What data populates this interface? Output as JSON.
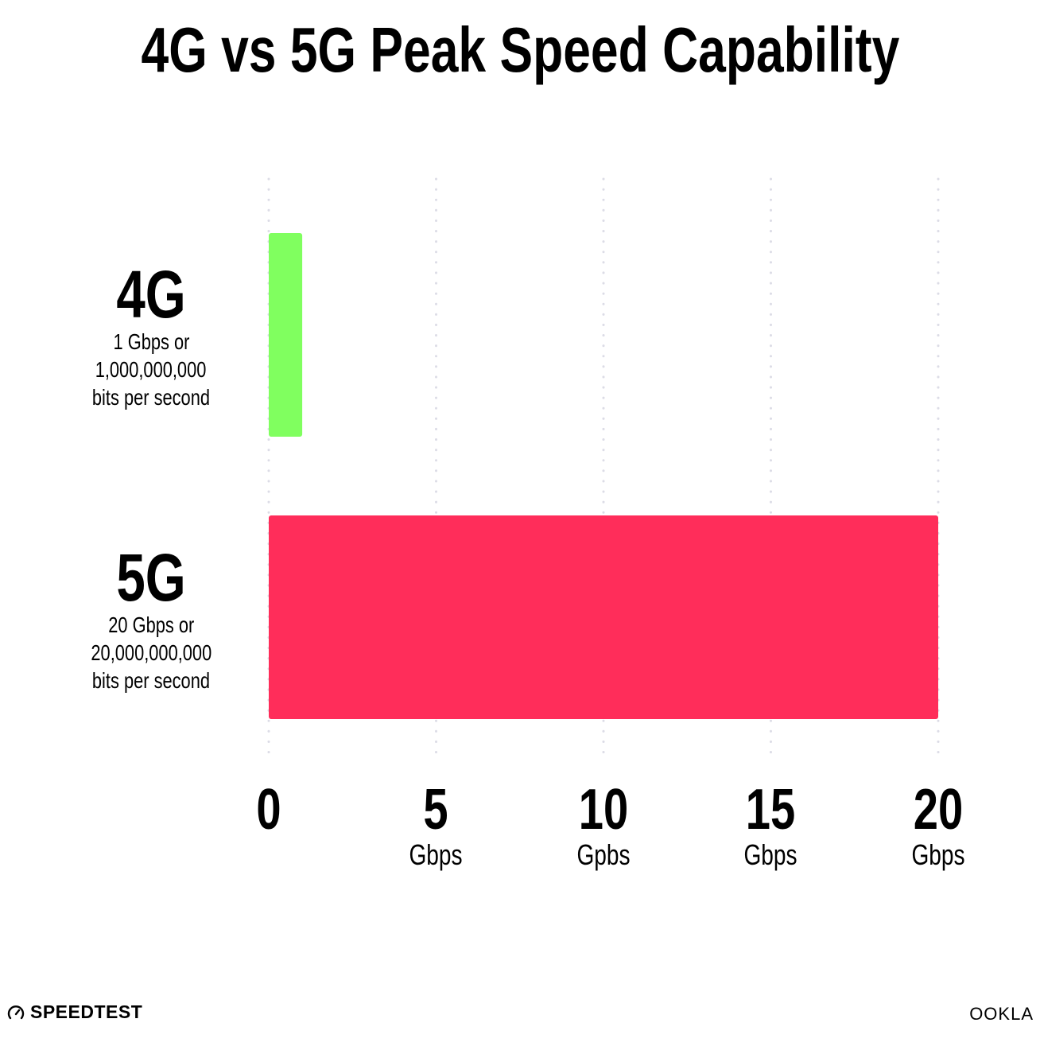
{
  "chart_data": {
    "type": "bar",
    "orientation": "horizontal",
    "title": "4G vs 5G Peak Speed Capability",
    "categories": [
      "4G",
      "5G"
    ],
    "category_descriptions": [
      [
        "1 Gbps or",
        "1,000,000,000",
        "bits per second"
      ],
      [
        "20 Gbps or",
        "20,000,000,000",
        "bits per second"
      ]
    ],
    "values": [
      1,
      20
    ],
    "colors": [
      "#80ff5f",
      "#ff2d5a"
    ],
    "xlim": [
      0,
      20
    ],
    "xticks": [
      {
        "value": 0,
        "label": "0",
        "unit": ""
      },
      {
        "value": 5,
        "label": "5",
        "unit": "Gbps"
      },
      {
        "value": 10,
        "label": "10",
        "unit": "Gpbs"
      },
      {
        "value": 15,
        "label": "15",
        "unit": "Gbps"
      },
      {
        "value": 20,
        "label": "20",
        "unit": "Gbps"
      }
    ],
    "grid": "vertical dotted",
    "xlabel": "",
    "ylabel": ""
  },
  "branding": {
    "left_logo": "SPEEDTEST",
    "right_logo": "OOKLA",
    "gauge_icon": "speedometer-icon"
  }
}
